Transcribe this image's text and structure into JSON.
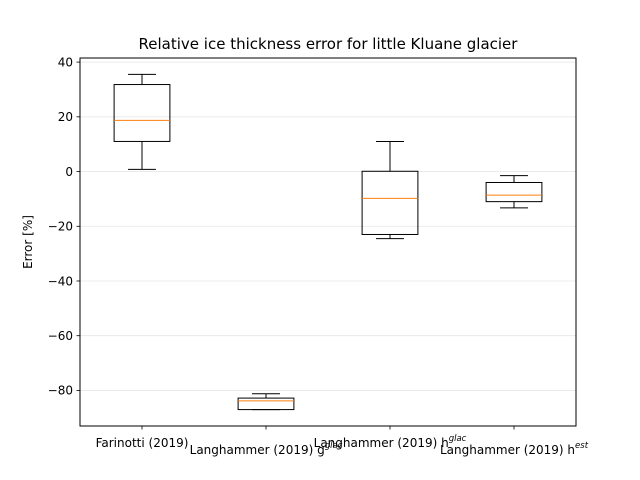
{
  "chart_data": {
    "type": "box",
    "title": "Relative ice thickness error for little Kluane glacier",
    "xlabel": "",
    "ylabel": "Error [%]",
    "ylim": [
      -93,
      41.5
    ],
    "yticks": [
      "40",
      "20",
      "0",
      "−20",
      "−40",
      "−60",
      "−80"
    ],
    "grid": "horizontal",
    "categories": [
      {
        "label": "Farinotti (2019)",
        "label_sup": ""
      },
      {
        "label": "Langhammer (2019) g",
        "label_sup": "glac"
      },
      {
        "label": "Langhammer (2019) h",
        "label_sup": "glac"
      },
      {
        "label": "Langhammer (2019) h",
        "label_sup": "est"
      }
    ],
    "boxes": [
      {
        "whisker_low": 0.8,
        "q1": 11,
        "median": 18.7,
        "q3": 31.8,
        "whisker_high": 35.5
      },
      {
        "whisker_low": -87,
        "q1": -87,
        "median": -83.8,
        "q3": -82.8,
        "whisker_high": -81.2
      },
      {
        "whisker_low": -24.5,
        "q1": -23,
        "median": -9.8,
        "q3": 0.1,
        "whisker_high": 11
      },
      {
        "whisker_low": -13.3,
        "q1": -11,
        "median": -8.6,
        "q3": -4,
        "whisker_high": -1.5
      }
    ],
    "colors": {
      "box": "#000000",
      "median": "#ff7f0e",
      "grid": "#e6e6e6"
    }
  }
}
